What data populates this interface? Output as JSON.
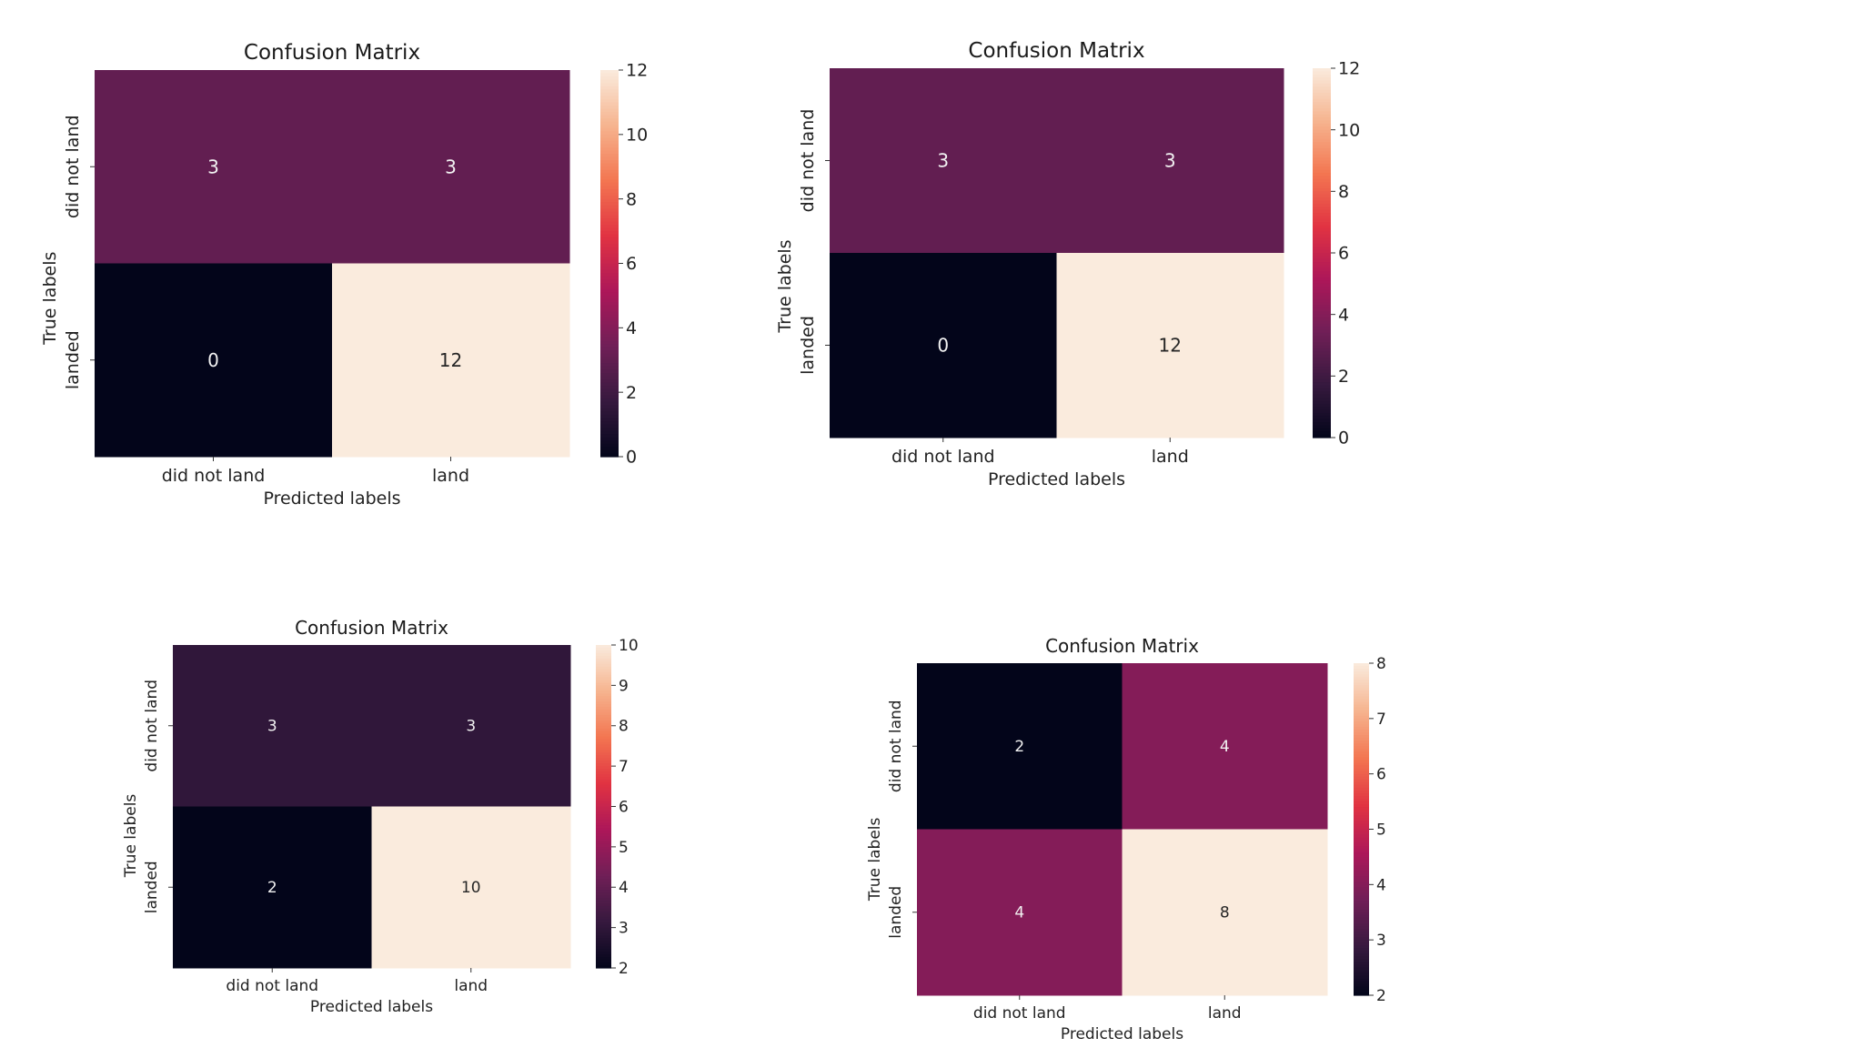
{
  "chart_data": [
    {
      "type": "heatmap",
      "title": "Confusion Matrix",
      "xlabel": "Predicted labels",
      "ylabel": "True labels",
      "x_categories": [
        "did not land",
        "land"
      ],
      "y_categories": [
        "did not land",
        "landed"
      ],
      "values": [
        [
          3,
          3
        ],
        [
          0,
          12
        ]
      ],
      "colorbar": {
        "range": [
          0,
          12
        ],
        "ticks": [
          "0",
          "2",
          "4",
          "6",
          "8",
          "10",
          "12"
        ]
      }
    },
    {
      "type": "heatmap",
      "title": "Confusion Matrix",
      "xlabel": "Predicted labels",
      "ylabel": "True labels",
      "x_categories": [
        "did not land",
        "land"
      ],
      "y_categories": [
        "did not land",
        "landed"
      ],
      "values": [
        [
          3,
          3
        ],
        [
          0,
          12
        ]
      ],
      "colorbar": {
        "range": [
          0,
          12
        ],
        "ticks": [
          "0",
          "2",
          "4",
          "6",
          "8",
          "10",
          "12"
        ]
      }
    },
    {
      "type": "heatmap",
      "title": "Confusion Matrix",
      "xlabel": "Predicted labels",
      "ylabel": "True labels",
      "x_categories": [
        "did not land",
        "land"
      ],
      "y_categories": [
        "did not land",
        "landed"
      ],
      "values": [
        [
          3,
          3
        ],
        [
          2,
          10
        ]
      ],
      "colorbar": {
        "range": [
          2,
          10
        ],
        "ticks": [
          "2",
          "3",
          "4",
          "5",
          "6",
          "7",
          "8",
          "9",
          "10"
        ]
      }
    },
    {
      "type": "heatmap",
      "title": "Confusion Matrix",
      "xlabel": "Predicted labels",
      "ylabel": "True labels",
      "x_categories": [
        "did not land",
        "land"
      ],
      "y_categories": [
        "did not land",
        "landed"
      ],
      "values": [
        [
          2,
          4
        ],
        [
          4,
          8
        ]
      ],
      "colorbar": {
        "range": [
          2,
          8
        ],
        "ticks": [
          "2",
          "3",
          "4",
          "5",
          "6",
          "7",
          "8"
        ]
      }
    }
  ],
  "colormap": {
    "name": "rocket",
    "stops": [
      "#03051a",
      "#36193e",
      "#701f57",
      "#ad1759",
      "#e13342",
      "#f37651",
      "#f6b48f",
      "#faebdd"
    ]
  }
}
